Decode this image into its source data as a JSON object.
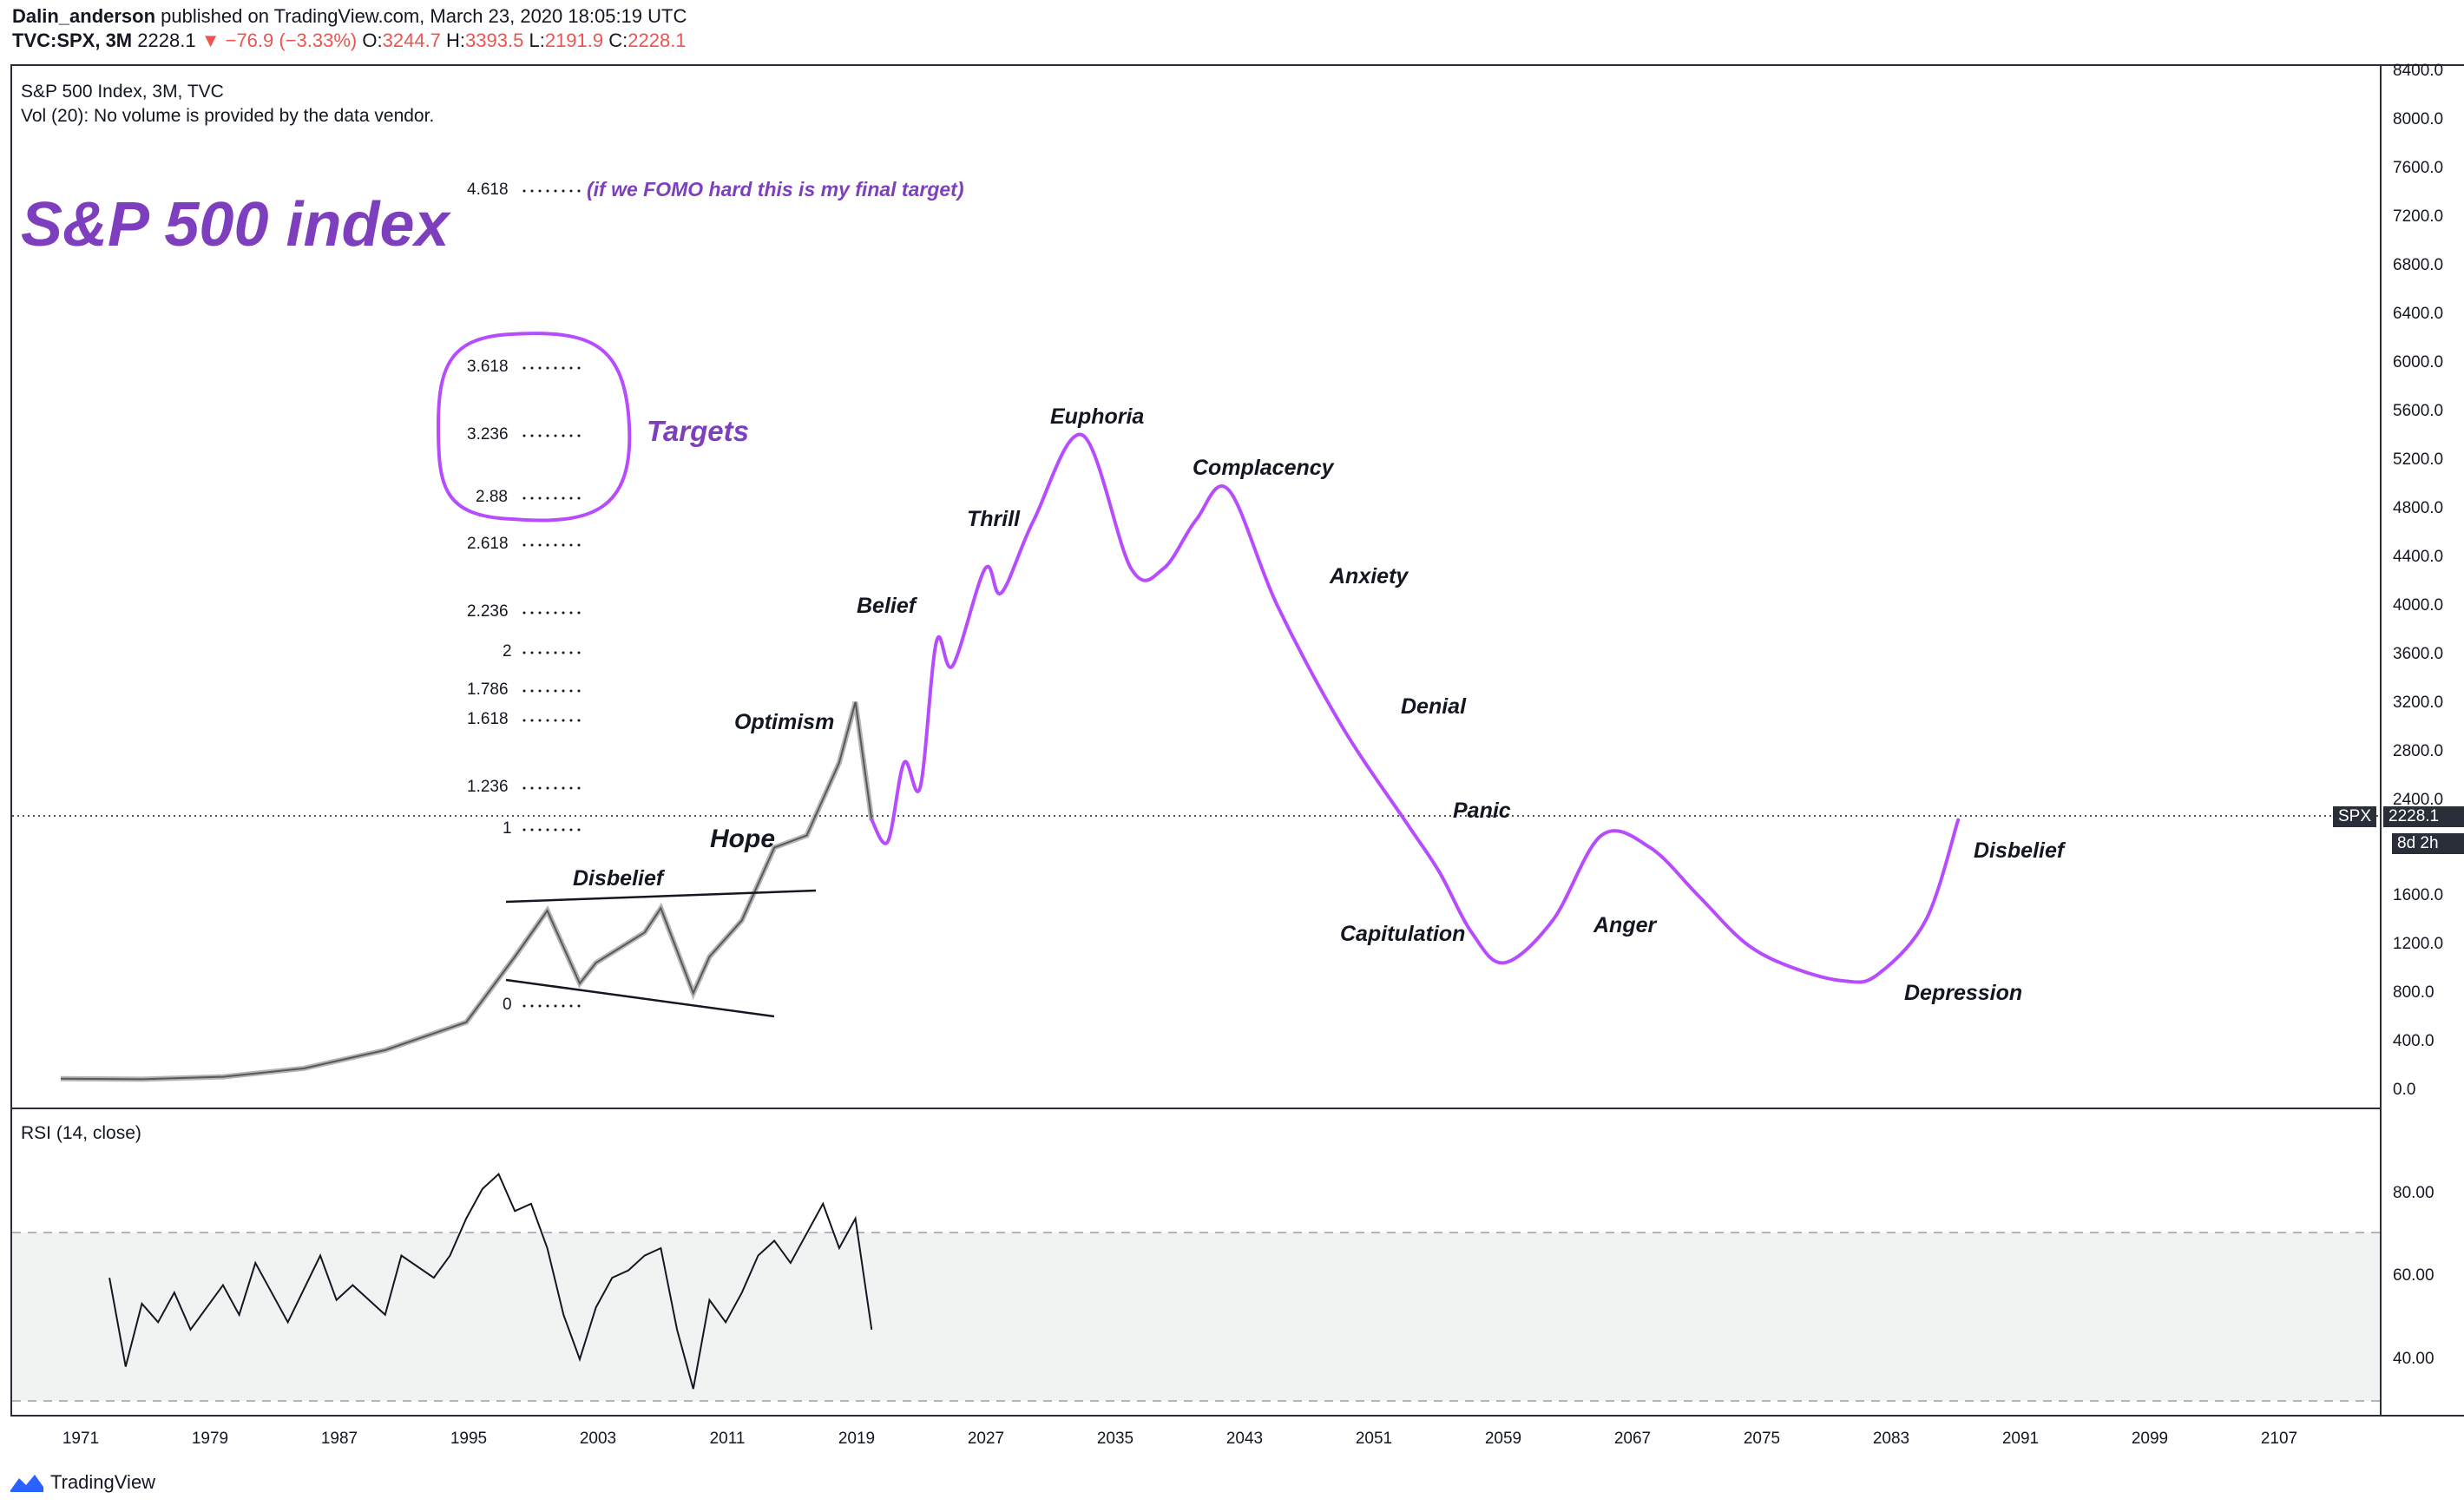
{
  "header": {
    "author": "Dalin_anderson",
    "published": "published on TradingView.com, March 23, 2020 18:05:19 UTC",
    "symbol": "TVC:SPX, 3M",
    "last": "2228.1",
    "change": "−76.9 (−3.33%)",
    "open_label": "O:",
    "open": "3244.7",
    "high_label": "H:",
    "high": "3393.5",
    "low_label": "L:",
    "low": "2191.9",
    "close_label": "C:",
    "close": "2228.1"
  },
  "main_pane": {
    "legend_title": "S&P 500 Index, 3M, TVC",
    "legend_vol": "Vol (20): No volume is provided by the data vendor.",
    "big_title": "S&P 500 index",
    "targets_label": "Targets",
    "fomo_note": "(if we FOMO hard this is my final target)",
    "price_tag": "SPX",
    "price_tag_value": "2228.1",
    "countdown": "8d 2h"
  },
  "price_axis": [
    "8400.0",
    "8000.0",
    "7600.0",
    "7200.0",
    "6800.0",
    "6400.0",
    "6000.0",
    "5600.0",
    "5200.0",
    "4800.0",
    "4400.0",
    "4000.0",
    "3600.0",
    "3200.0",
    "2800.0",
    "2400.0",
    "1600.0",
    "1200.0",
    "800.0",
    "400.0",
    "0.0"
  ],
  "fib_levels": [
    "4.618",
    "3.618",
    "3.236",
    "2.88",
    "2.618",
    "2.236",
    "2",
    "1.786",
    "1.618",
    "1.236",
    "1",
    "0"
  ],
  "phases": {
    "disbelief1": "Disbelief",
    "hope": "Hope",
    "optimism": "Optimism",
    "belief": "Belief",
    "thrill": "Thrill",
    "euphoria": "Euphoria",
    "complacency": "Complacency",
    "anxiety": "Anxiety",
    "denial": "Denial",
    "panic": "Panic",
    "capitulation": "Capitulation",
    "anger": "Anger",
    "depression": "Depression",
    "disbelief2": "Disbelief"
  },
  "rsi_pane": {
    "legend": "RSI (14, close)",
    "axis": [
      "80.00",
      "60.00",
      "40.00"
    ]
  },
  "time_axis": [
    "1971",
    "1979",
    "1987",
    "1995",
    "2003",
    "2011",
    "2019",
    "2027",
    "2035",
    "2043",
    "2051",
    "2059",
    "2067",
    "2075",
    "2083",
    "2091",
    "2099",
    "2107"
  ],
  "footer": {
    "brand": "TradingView"
  },
  "colors": {
    "accent": "#7e3fbf",
    "curve": "#b74cff",
    "down": "#ef5350",
    "tag": "#2a2e39"
  },
  "chart_data": {
    "type": "line",
    "title": "S&P 500 Index, 3M, TVC",
    "ylim": [
      0,
      8400
    ],
    "xlim": [
      1967,
      2113
    ],
    "series": [
      {
        "values_x": [
          1970,
          1975,
          1980,
          1985,
          1990,
          1995,
          1998,
          2000,
          2002,
          2003,
          2006,
          2007,
          2009,
          2010,
          2012,
          2014,
          2016,
          2018,
          2019,
          2020
        ],
        "values_y": [
          95,
          90,
          110,
          180,
          330,
          560,
          1100,
          1480,
          880,
          1050,
          1300,
          1500,
          800,
          1100,
          1400,
          2000,
          2100,
          2700,
          3200,
          2228
        ]
      },
      {
        "values_x": [
          2020,
          2021,
          2022,
          2023,
          2024,
          2025,
          2027,
          2028,
          2030,
          2033,
          2036,
          2038,
          2040,
          2042,
          2045,
          2049,
          2053,
          2055,
          2057,
          2059,
          2062,
          2065,
          2068,
          2071,
          2074,
          2077,
          2080,
          2082,
          2085,
          2087
        ],
        "values_y": [
          2228,
          2050,
          2700,
          2500,
          3700,
          3500,
          4300,
          4100,
          4700,
          5400,
          4300,
          4300,
          4700,
          4950,
          4000,
          3000,
          2200,
          1800,
          1300,
          1050,
          1400,
          2100,
          2000,
          1600,
          1200,
          1000,
          900,
          950,
          1400,
          2228
        ]
      }
    ],
    "rsi": {
      "ylim": [
        25,
        100
      ],
      "levels": [
        70,
        30
      ]
    }
  }
}
